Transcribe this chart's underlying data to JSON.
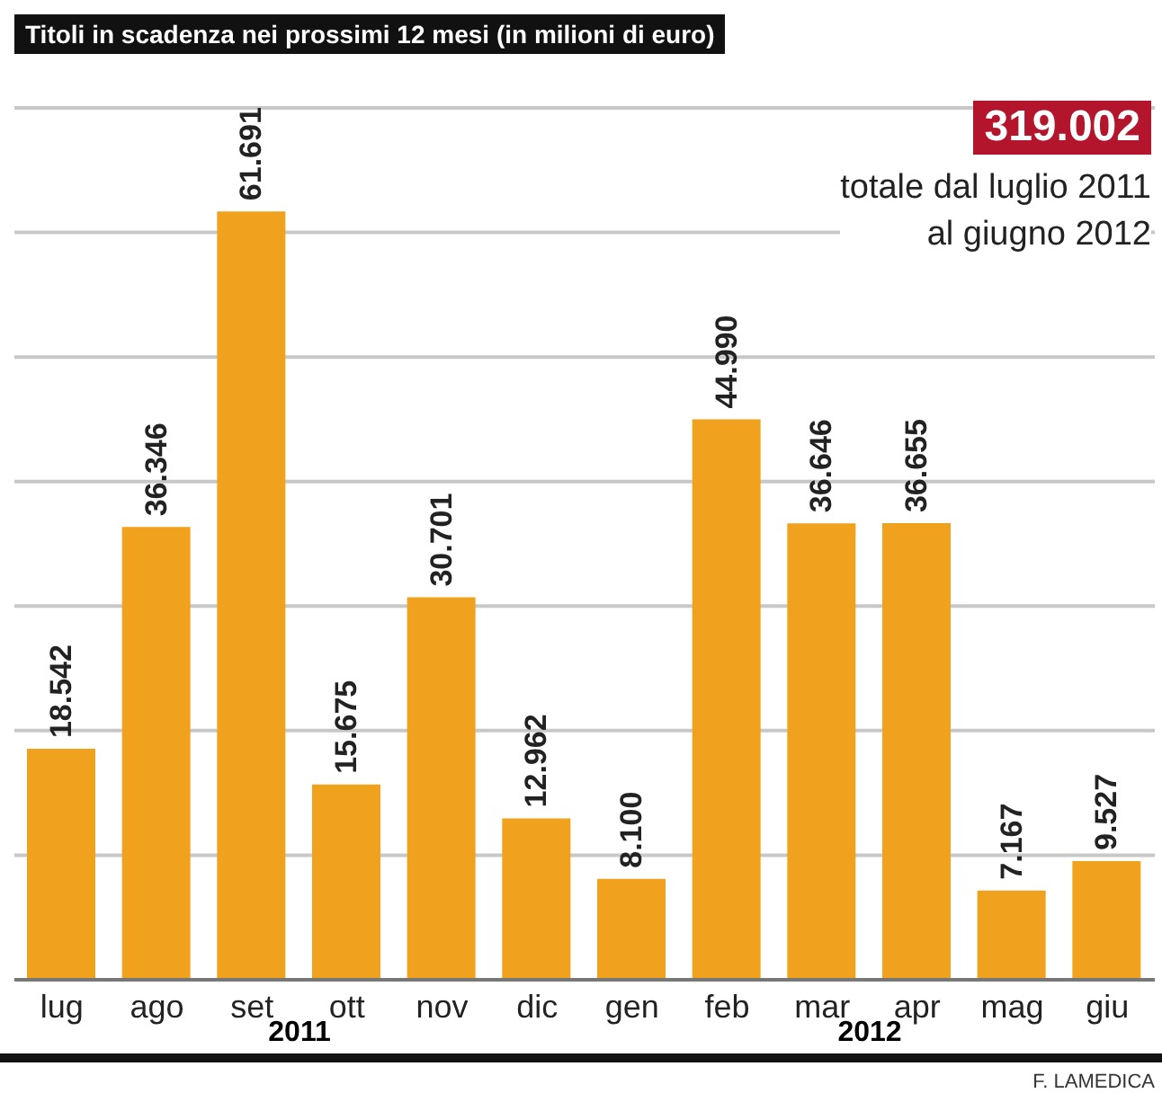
{
  "chart_data": {
    "type": "bar",
    "title": "Titoli in scadenza nei prossimi 12 mesi (in milioni di euro)",
    "categories": [
      "lug",
      "ago",
      "set",
      "ott",
      "nov",
      "dic",
      "gen",
      "feb",
      "mar",
      "apr",
      "mag",
      "giu"
    ],
    "values": [
      18542,
      36346,
      61691,
      15675,
      30701,
      12962,
      8100,
      44990,
      36646,
      36655,
      7167,
      9527
    ],
    "value_labels": [
      "18.542",
      "36.346",
      "61.691",
      "15.675",
      "30.701",
      "12.962",
      "8.100",
      "44.990",
      "36.646",
      "36.655",
      "7.167",
      "9.527"
    ],
    "color": "#f0a21e",
    "ylim": [
      0,
      70000
    ],
    "yticks": [
      {
        "value": 10000,
        "label": null
      },
      {
        "value": 20000,
        "label": null
      },
      {
        "value": 30000,
        "label": null
      },
      {
        "value": 40000,
        "label": null
      },
      {
        "value": 50000,
        "label": null
      },
      {
        "value": 60000,
        "label": null
      },
      {
        "value": 70000,
        "label": null
      }
    ],
    "tick_labels": "x",
    "grid": "y",
    "annotations": [
      "319.002",
      "totale dal luglio 2011\nal giugno 2012",
      "2011",
      "2012",
      "F. LAMEDICA"
    ]
  }
}
